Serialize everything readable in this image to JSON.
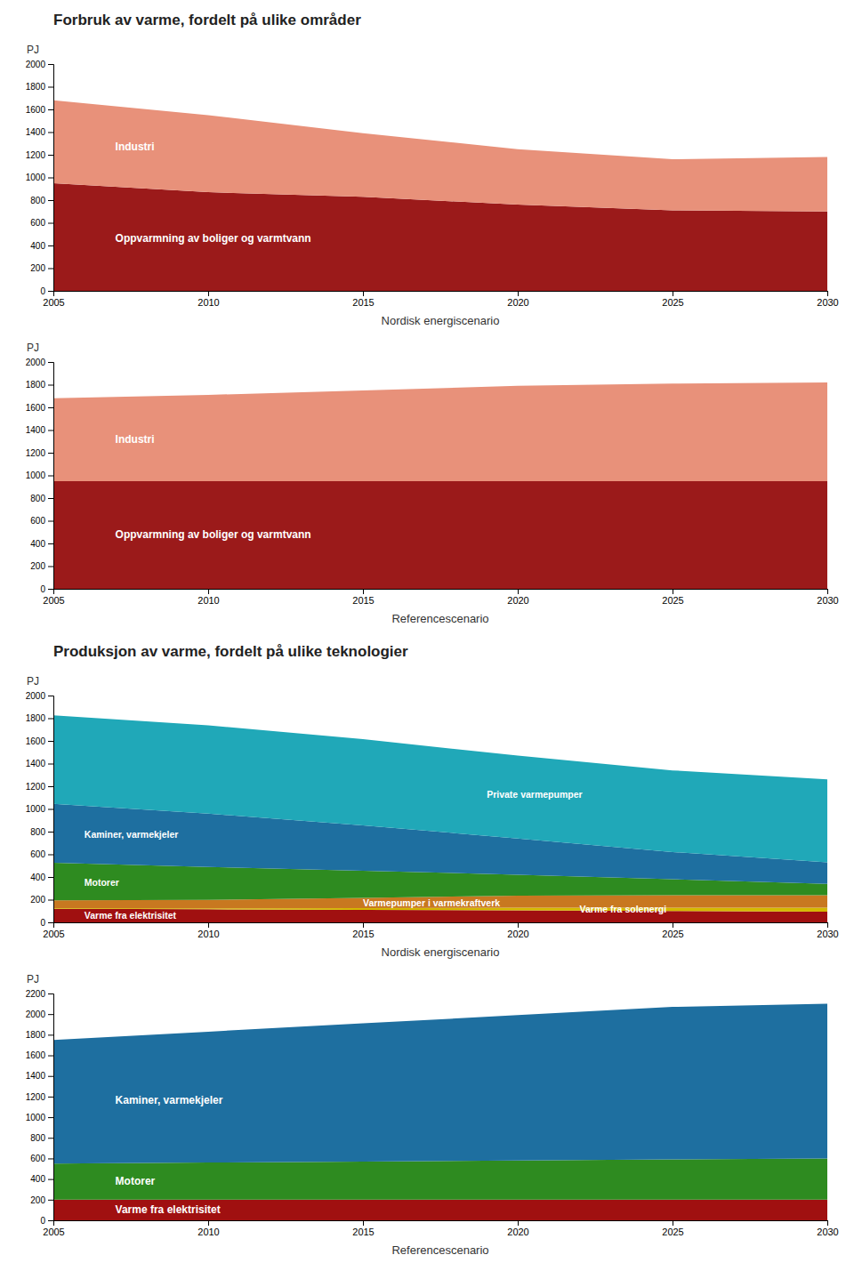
{
  "chart_data": [
    {
      "type": "area",
      "stacked": true,
      "title": "Forbruk av varme, fordelt på ulike områder",
      "xlabel": "Nordisk energiscenario",
      "ylabel": "PJ",
      "x": [
        2005,
        2010,
        2015,
        2020,
        2025,
        2030
      ],
      "xlim": [
        2005,
        2030
      ],
      "xticks": [
        2005,
        2010,
        2015,
        2020,
        2025,
        2030
      ],
      "ylim": [
        0,
        2000
      ],
      "yticks": [
        0,
        200,
        400,
        600,
        800,
        1000,
        1200,
        1400,
        1600,
        1800,
        2000
      ],
      "series": [
        {
          "name": "Oppvarmning av boliger og varmtvann",
          "color": "#9b1a1a",
          "values": [
            950,
            870,
            830,
            760,
            710,
            700
          ]
        },
        {
          "name": "Industri",
          "color": "#e8917a",
          "values": [
            730,
            680,
            560,
            490,
            450,
            480
          ]
        }
      ]
    },
    {
      "type": "area",
      "stacked": true,
      "xlabel": "Referencescenario",
      "ylabel": "PJ",
      "x": [
        2005,
        2010,
        2015,
        2020,
        2025,
        2030
      ],
      "xlim": [
        2005,
        2030
      ],
      "xticks": [
        2005,
        2010,
        2015,
        2020,
        2025,
        2030
      ],
      "ylim": [
        0,
        2000
      ],
      "yticks": [
        0,
        200,
        400,
        600,
        800,
        1000,
        1200,
        1400,
        1600,
        1800,
        2000
      ],
      "series": [
        {
          "name": "Oppvarmning av boliger og varmtvann",
          "color": "#9b1a1a",
          "values": [
            950,
            950,
            950,
            950,
            950,
            950
          ]
        },
        {
          "name": "Industri",
          "color": "#e8917a",
          "values": [
            730,
            760,
            800,
            840,
            860,
            870
          ]
        }
      ]
    },
    {
      "type": "area",
      "stacked": true,
      "title": "Produksjon av varme, fordelt på ulike teknologier",
      "xlabel": "Nordisk energiscenario",
      "ylabel": "PJ",
      "x": [
        2005,
        2010,
        2015,
        2020,
        2025,
        2030
      ],
      "xlim": [
        2005,
        2030
      ],
      "xticks": [
        2005,
        2010,
        2015,
        2020,
        2025,
        2030
      ],
      "ylim": [
        0,
        2000
      ],
      "yticks": [
        0,
        200,
        400,
        600,
        800,
        1000,
        1200,
        1400,
        1600,
        1800,
        2000
      ],
      "series": [
        {
          "name": "Varme fra elektrisitet",
          "color": "#a01010",
          "values": [
            120,
            115,
            110,
            105,
            100,
            95
          ]
        },
        {
          "name": "Varme fra solenergi",
          "color": "#d4b800",
          "values": [
            5,
            8,
            15,
            25,
            30,
            35
          ]
        },
        {
          "name": "Varmepumper i varmekraftverk",
          "color": "#c87820",
          "values": [
            70,
            75,
            90,
            105,
            110,
            110
          ]
        },
        {
          "name": "Motorer",
          "color": "#2e8b20",
          "values": [
            330,
            290,
            240,
            185,
            140,
            100
          ]
        },
        {
          "name": "Kaminer, varmekjeler",
          "color": "#1e6fa0",
          "values": [
            520,
            470,
            400,
            320,
            240,
            190
          ]
        },
        {
          "name": "Private varmepumper",
          "color": "#20a8b8",
          "values": [
            780,
            780,
            760,
            730,
            720,
            730
          ]
        }
      ]
    },
    {
      "type": "area",
      "stacked": true,
      "xlabel": "Referencescenario",
      "ylabel": "PJ",
      "x": [
        2005,
        2010,
        2015,
        2020,
        2025,
        2030
      ],
      "xlim": [
        2005,
        2030
      ],
      "xticks": [
        2005,
        2010,
        2015,
        2020,
        2025,
        2030
      ],
      "ylim": [
        0,
        2200
      ],
      "yticks": [
        0,
        200,
        400,
        600,
        800,
        1000,
        1200,
        1400,
        1600,
        1800,
        2000,
        2200
      ],
      "series": [
        {
          "name": "Varme fra elektrisitet",
          "color": "#a01010",
          "values": [
            200,
            200,
            200,
            200,
            200,
            200
          ]
        },
        {
          "name": "Motorer",
          "color": "#2e8b20",
          "values": [
            350,
            360,
            370,
            380,
            390,
            400
          ]
        },
        {
          "name": "Kaminer, varmekjeler",
          "color": "#1e6fa0",
          "values": [
            1200,
            1270,
            1340,
            1410,
            1480,
            1500
          ]
        }
      ]
    }
  ]
}
